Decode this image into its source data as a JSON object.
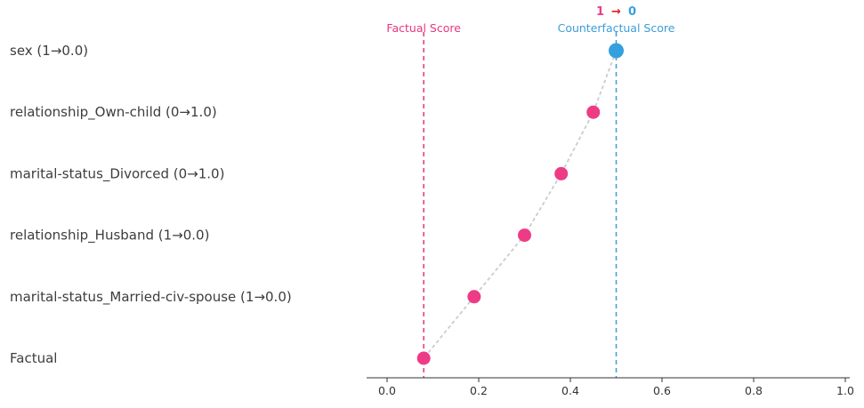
{
  "chart_data": {
    "type": "scatter",
    "title": "",
    "orientation": "horizontal-dot-plot",
    "rows": [
      {
        "label": "sex (1→0.0)",
        "value": 0.5,
        "color_role": "counterfactual"
      },
      {
        "label": "relationship_Own-child (0→1.0)",
        "value": 0.45,
        "color_role": "factual"
      },
      {
        "label": "marital-status_Divorced (0→1.0)",
        "value": 0.38,
        "color_role": "factual"
      },
      {
        "label": "relationship_Husband (1→0.0)",
        "value": 0.3,
        "color_role": "factual"
      },
      {
        "label": "marital-status_Married-civ-spouse (1→0.0)",
        "value": 0.19,
        "color_role": "factual"
      },
      {
        "label": "Factual",
        "value": 0.08,
        "color_role": "factual"
      }
    ],
    "xlim": [
      0,
      1
    ],
    "xticks": [
      "0.0",
      "0.2",
      "0.4",
      "0.6",
      "0.8",
      "1.0"
    ],
    "xtick_values": [
      0,
      0.2,
      0.4,
      0.6,
      0.8,
      1.0
    ],
    "xlabel": "",
    "ylabel": "",
    "grid": false,
    "legend": false,
    "reference_lines": [
      {
        "label": "Factual Score",
        "value": 0.08,
        "color": "#e8377f"
      },
      {
        "label": "Counterfactual Score",
        "value": 0.5,
        "color": "#3b9dd6"
      }
    ],
    "transition_label": {
      "from": "1",
      "arrow": "→",
      "to": "0"
    },
    "colors": {
      "factual_point": "#ee3b86",
      "counterfactual_point": "#35a0dd",
      "connector": "#cccccc",
      "arrow": "#e02020",
      "axis": "#333333",
      "row_label": "#3d3d3d"
    }
  }
}
